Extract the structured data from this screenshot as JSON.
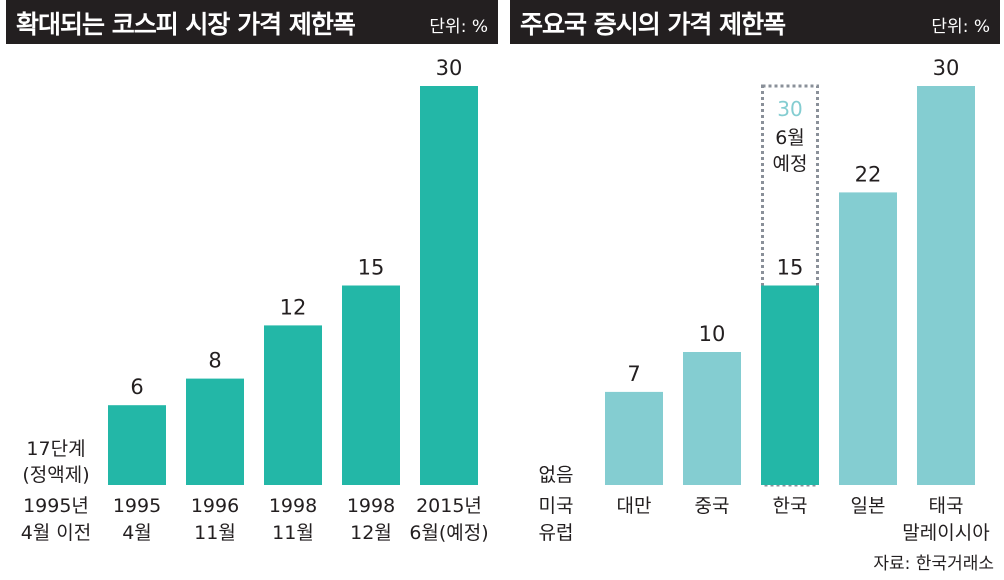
{
  "left_header": {
    "title": "확대되는 코스피 시장 가격 제한폭",
    "unit": "단위: %"
  },
  "right_header": {
    "title": "주요국 증시의 가격 제한폭",
    "unit": "단위: %"
  },
  "source": "자료: 한국거래소",
  "colors": {
    "teal": "#23b7a7",
    "light_teal": "#84cdd1",
    "dark": "#231f20",
    "dotted": "#8a9099",
    "note_value": "#84cdd1"
  },
  "chart_data": [
    {
      "type": "bar",
      "title": "확대되는 코스피 시장 가격 제한폭",
      "unit": "단위: %",
      "ylim": [
        0,
        30
      ],
      "categories": [
        [
          "1995년",
          "4월 이전"
        ],
        [
          "1995",
          "4월"
        ],
        [
          "1996",
          "11월"
        ],
        [
          "1998",
          "11월"
        ],
        [
          "1998",
          "12월"
        ],
        [
          "2015년",
          "6월(예정)"
        ]
      ],
      "values": [
        null,
        6,
        8,
        12,
        15,
        30
      ],
      "value_labels": [
        [
          "17단계",
          "(정액제)"
        ],
        "6",
        "8",
        "12",
        "15",
        "30"
      ],
      "color": "#23b7a7"
    },
    {
      "type": "bar",
      "title": "주요국 증시의 가격 제한폭",
      "unit": "단위: %",
      "ylim": [
        0,
        30
      ],
      "categories": [
        [
          "미국",
          "유럽"
        ],
        [
          "대만"
        ],
        [
          "중국"
        ],
        [
          "한국"
        ],
        [
          "일본"
        ],
        [
          "태국",
          "말레이시아"
        ]
      ],
      "values": [
        null,
        7,
        10,
        15,
        22,
        30
      ],
      "value_labels": [
        "없음",
        "7",
        "10",
        "15",
        "22",
        "30"
      ],
      "highlight_index": 3,
      "planned": {
        "index": 3,
        "value": 30,
        "value_label": "30",
        "note": [
          "6월",
          "예정"
        ]
      },
      "colors": [
        "#84cdd1",
        "#84cdd1",
        "#84cdd1",
        "#23b7a7",
        "#84cdd1",
        "#84cdd1"
      ]
    }
  ]
}
